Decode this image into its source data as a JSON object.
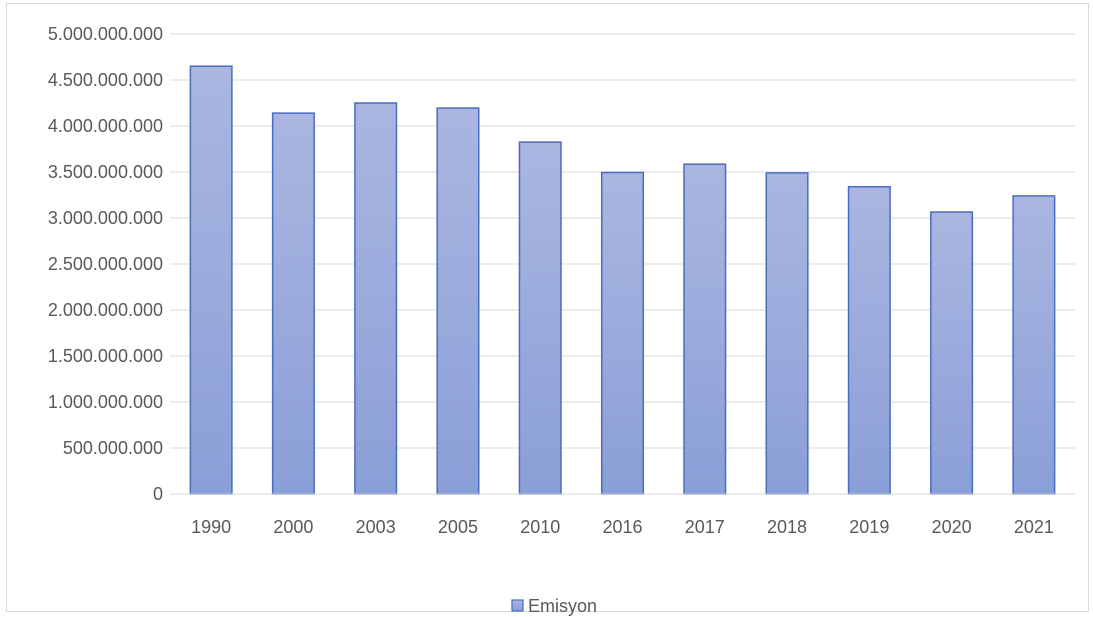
{
  "chart_data": {
    "type": "bar",
    "categories": [
      "1990",
      "2000",
      "2003",
      "2005",
      "2010",
      "2016",
      "2017",
      "2018",
      "2019",
      "2020",
      "2021"
    ],
    "series": [
      {
        "name": "Emisyon",
        "values": [
          4650000000,
          4140000000,
          4250000000,
          4195000000,
          3825000000,
          3495000000,
          3585000000,
          3490000000,
          3340000000,
          3065000000,
          3240000000
        ]
      }
    ],
    "title": "",
    "xlabel": "",
    "ylabel": "",
    "ylim": [
      0,
      5000000000
    ],
    "yticks": [
      0,
      500000000,
      1000000000,
      1500000000,
      2000000000,
      2500000000,
      3000000000,
      3500000000,
      4000000000,
      4500000000,
      5000000000
    ],
    "ytick_labels": [
      "0",
      "500.000.000",
      "1.000.000.000",
      "1.500.000.000",
      "2.000.000.000",
      "2.500.000.000",
      "3.000.000.000",
      "3.500.000.000",
      "4.000.000.000",
      "4.500.000.000",
      "5.000.000.000"
    ],
    "grid": true,
    "legend": "bottom",
    "colors": {
      "bar_fill_top": "#aab6e0",
      "bar_fill_bottom": "#8a9fd8",
      "bar_stroke": "#4a6cc0",
      "grid": "#d9d9d9",
      "axis": "#d9d9d9",
      "text": "#595959"
    }
  }
}
